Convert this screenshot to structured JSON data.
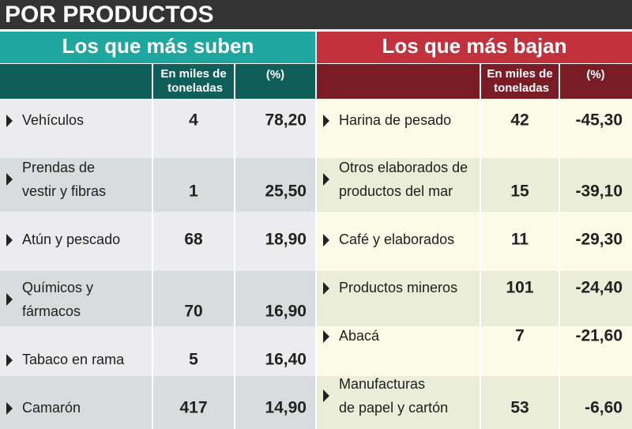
{
  "header": {
    "title": "POR PRODUCTOS"
  },
  "panels": [
    {
      "title": "Los que más suben",
      "columns": [
        "En miles de toneladas",
        "(%)"
      ],
      "rows": [
        {
          "label": [
            "Vehículos"
          ],
          "tons": "4",
          "pct": "78,20"
        },
        {
          "label": [
            "Prendas de",
            "vestir y fibras"
          ],
          "tons": "1",
          "pct": "25,50"
        },
        {
          "label": [
            "Atún y pescado"
          ],
          "tons": "68",
          "pct": "18,90"
        },
        {
          "label": [
            "Químicos y",
            "fármacos"
          ],
          "tons": "70",
          "pct": "16,90"
        },
        {
          "label": [
            "Tabaco en rama"
          ],
          "tons": "5",
          "pct": "16,40"
        },
        {
          "label": [
            "Camarón"
          ],
          "tons": "417",
          "pct": "14,90"
        }
      ]
    },
    {
      "title": "Los que más bajan",
      "columns": [
        "En miles de toneladas",
        "(%)"
      ],
      "rows": [
        {
          "label": [
            "Harina de pesado"
          ],
          "tons": "42",
          "pct": "-45,30"
        },
        {
          "label": [
            "Otros elaborados de",
            "productos del mar"
          ],
          "tons": "15",
          "pct": "-39,10"
        },
        {
          "label": [
            "Café y elaborados"
          ],
          "tons": "11",
          "pct": "-29,30"
        },
        {
          "label": [
            "Productos mineros"
          ],
          "tons": "101",
          "pct": "-24,40"
        },
        {
          "label": [
            "Abacá"
          ],
          "tons": "7",
          "pct": "-21,60"
        },
        {
          "label": [
            "Manufacturas",
            "de papel y cartón"
          ],
          "tons": "53",
          "pct": "-6,60"
        }
      ]
    }
  ]
}
